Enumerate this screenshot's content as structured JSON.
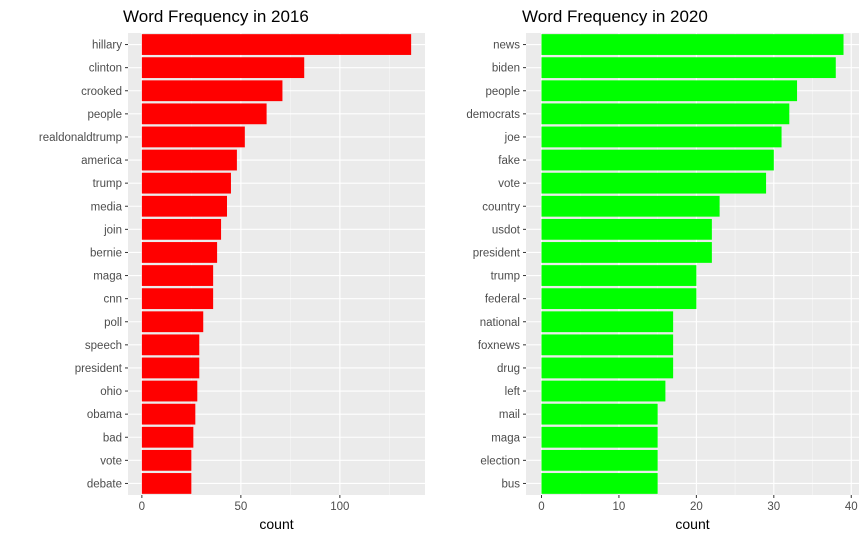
{
  "chart_data": [
    {
      "type": "bar",
      "orientation": "horizontal",
      "title": "Word Frequency in 2016",
      "xlabel": "count",
      "ylabel": "",
      "color": "#ff0000",
      "xlim": [
        -7,
        143
      ],
      "xticks": [
        0,
        50,
        100
      ],
      "tick_labels": [
        "0",
        "50",
        "100"
      ],
      "grid": true,
      "categories": [
        "hillary",
        "clinton",
        "crooked",
        "people",
        "realdonaldtrump",
        "america",
        "trump",
        "media",
        "join",
        "bernie",
        "maga",
        "cnn",
        "poll",
        "speech",
        "president",
        "ohio",
        "obama",
        "bad",
        "vote",
        "debate"
      ],
      "values": [
        136,
        82,
        71,
        63,
        52,
        48,
        45,
        43,
        40,
        38,
        36,
        36,
        31,
        29,
        29,
        28,
        27,
        26,
        25,
        25
      ]
    },
    {
      "type": "bar",
      "orientation": "horizontal",
      "title": "Word Frequency in 2020",
      "xlabel": "count",
      "ylabel": "",
      "color": "#00ff00",
      "xlim": [
        -2,
        41
      ],
      "xticks": [
        0,
        10,
        20,
        30,
        40
      ],
      "tick_labels": [
        "0",
        "10",
        "20",
        "30",
        "40"
      ],
      "grid": true,
      "categories": [
        "news",
        "biden",
        "people",
        "democrats",
        "joe",
        "fake",
        "vote",
        "country",
        "usdot",
        "president",
        "trump",
        "federal",
        "national",
        "foxnews",
        "drug",
        "left",
        "mail",
        "maga",
        "election",
        "bus"
      ],
      "values": [
        39,
        38,
        33,
        32,
        31,
        30,
        29,
        23,
        22,
        22,
        20,
        20,
        17,
        17,
        17,
        16,
        15,
        15,
        15,
        15
      ]
    }
  ]
}
